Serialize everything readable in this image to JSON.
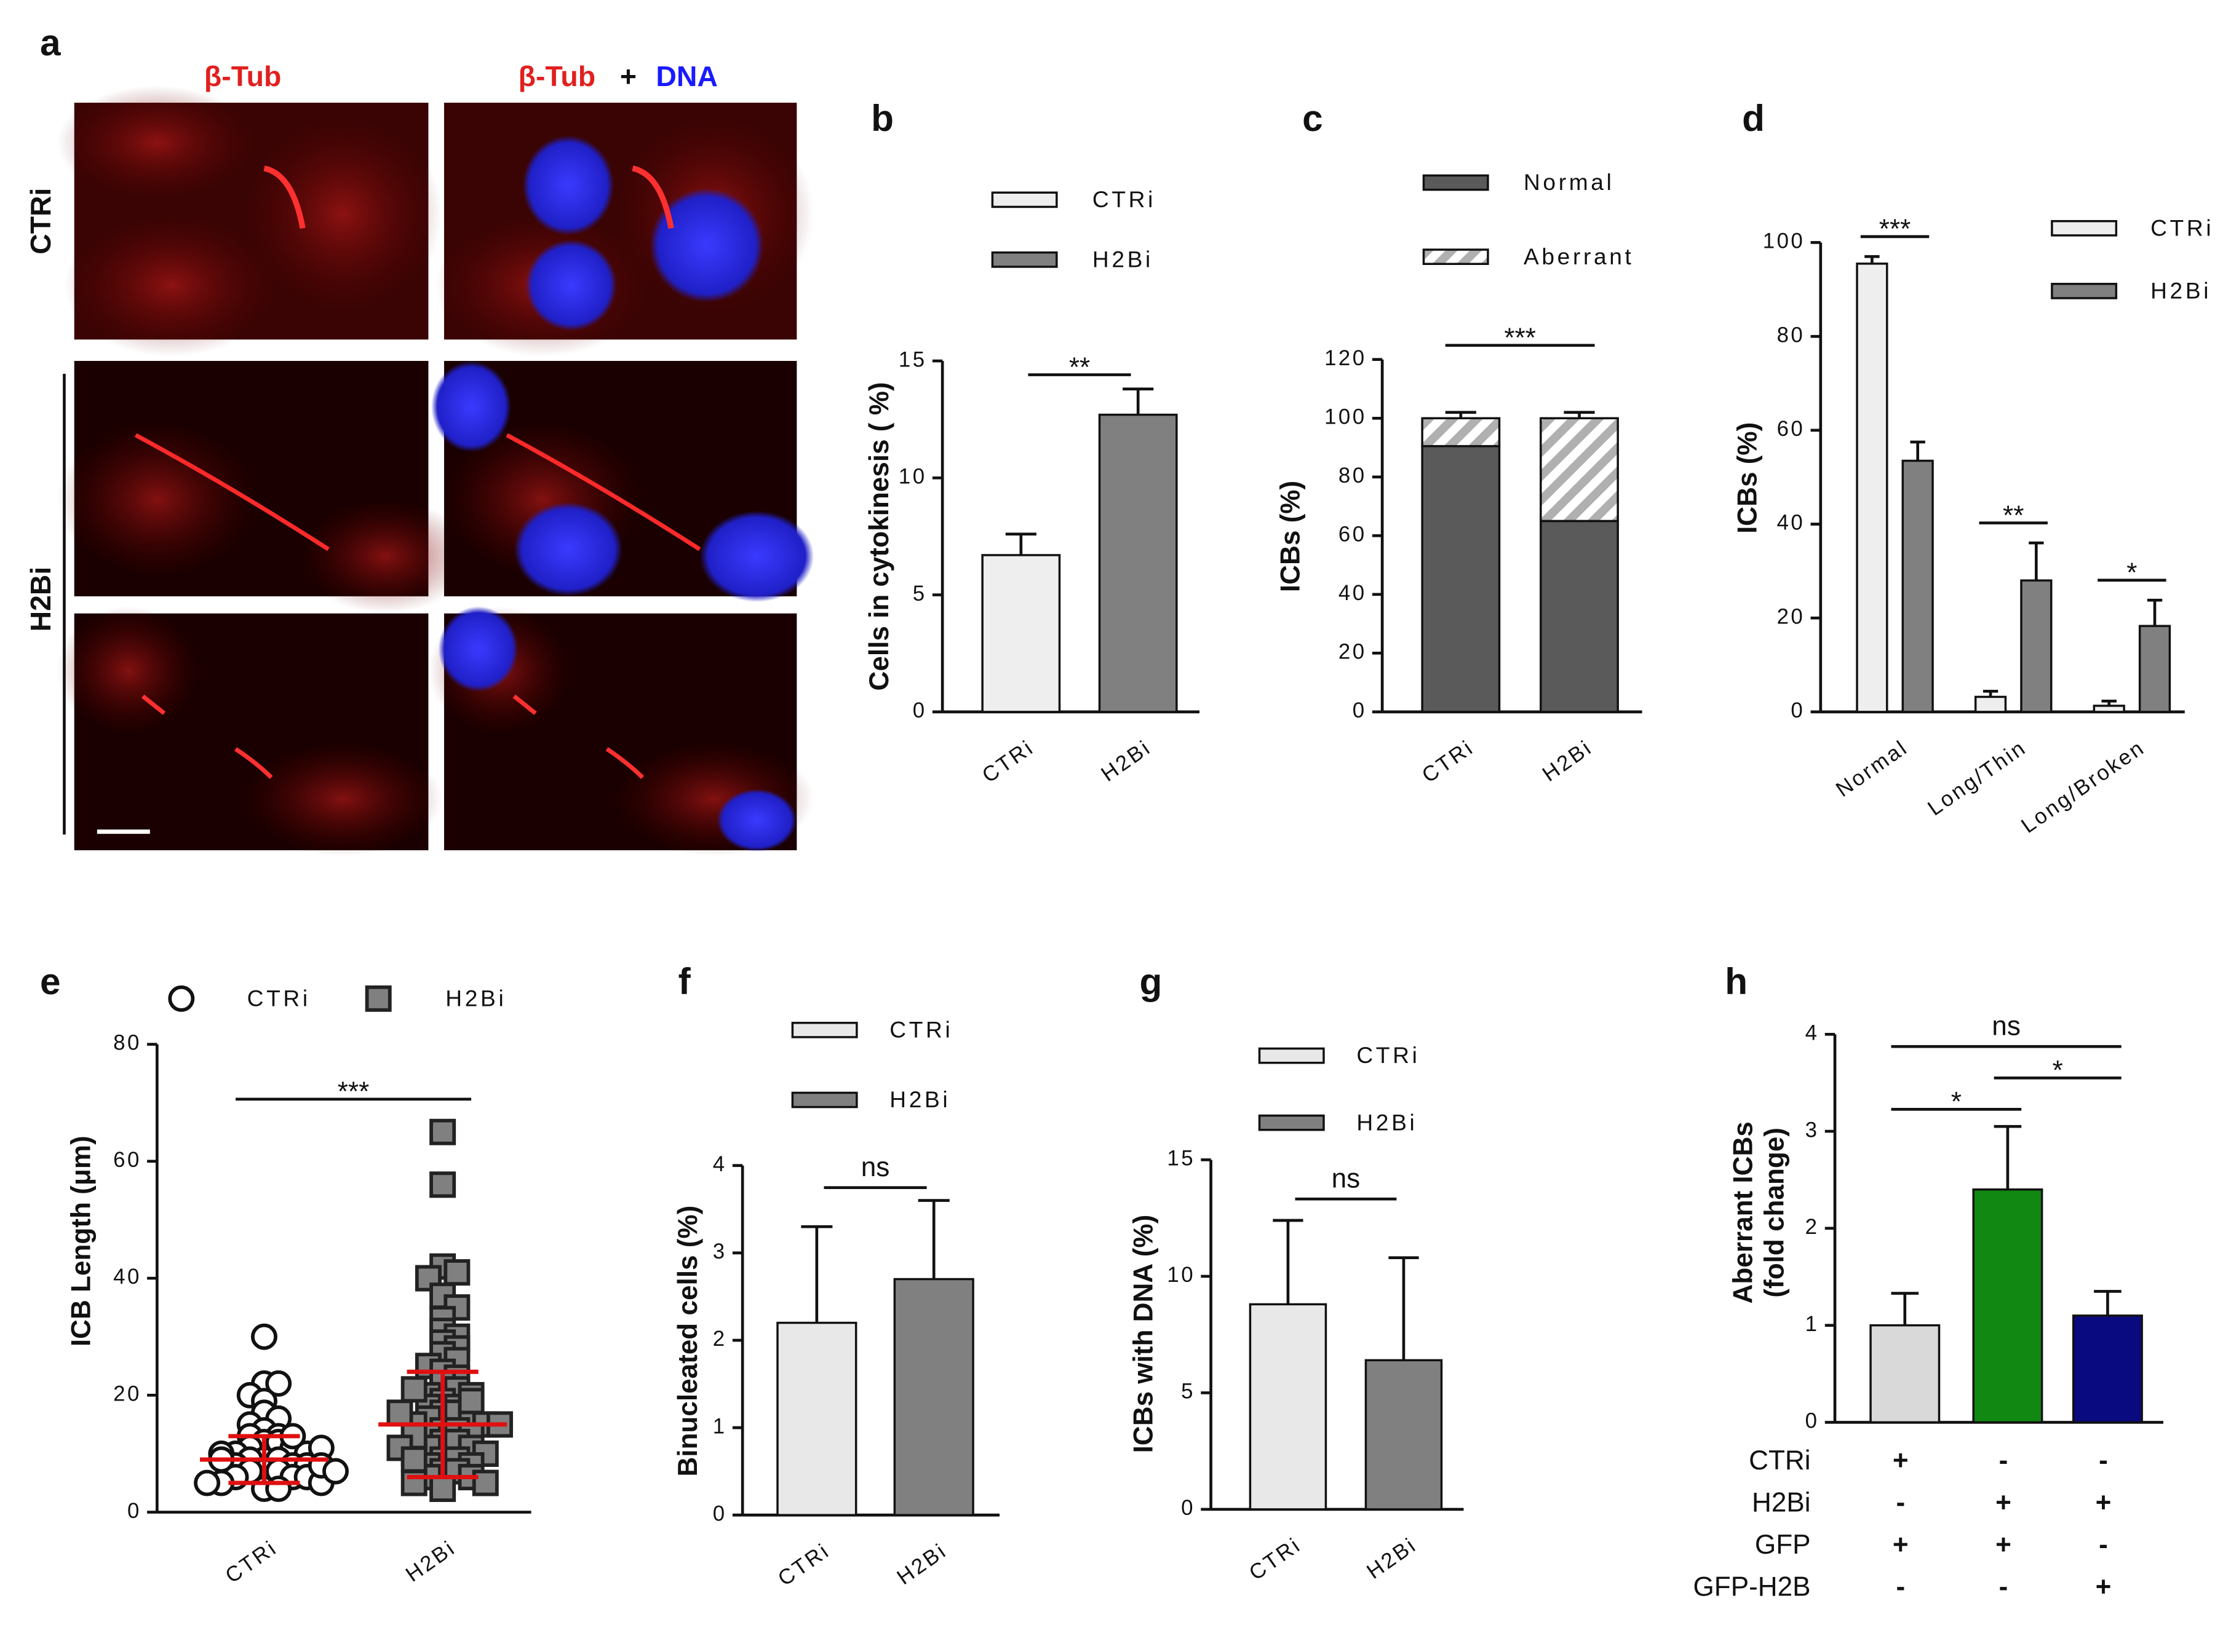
{
  "panel_a": {
    "label": "a",
    "channel_left": "β-Tub",
    "channel_right": [
      "β-Tub",
      "+",
      "DNA"
    ],
    "rows": [
      "CTRi",
      "H2Bi"
    ]
  },
  "chart_data": [
    {
      "type": "bar",
      "label": "b",
      "ylabel": "Cells in cytokinesis ( %)",
      "categories": [
        "CTRi",
        "H2Bi"
      ],
      "values": [
        6.7,
        12.7
      ],
      "errors": [
        0.9,
        1.1
      ],
      "colors": [
        "#eeeeee",
        "#808080"
      ],
      "ylim": [
        0,
        15
      ],
      "yticks": [
        0,
        5,
        10,
        15
      ],
      "legend": true,
      "annotations": [
        {
          "text": "**",
          "from": 0,
          "to": 1
        }
      ]
    },
    {
      "type": "stacked_bar",
      "label": "c",
      "ylabel": "ICBs (%)",
      "categories": [
        "CTRi",
        "H2Bi"
      ],
      "series": [
        {
          "name": "Normal",
          "color": "#5a5a5a",
          "values": [
            90.5,
            65
          ],
          "errors": [
            1.5,
            1.5
          ]
        },
        {
          "name": "Aberrant",
          "color": "#b0b0b0",
          "pattern": "hatch",
          "values": [
            9.5,
            35
          ],
          "errors": [
            2,
            2
          ]
        }
      ],
      "ylim": [
        0,
        120
      ],
      "yticks": [
        0,
        20,
        40,
        60,
        80,
        100,
        120
      ],
      "legend": true,
      "annotations": [
        {
          "text": "***",
          "from": 0,
          "to": 1
        }
      ]
    },
    {
      "type": "grouped_bar",
      "label": "d",
      "ylabel": "ICBs (%)",
      "categories": [
        "Normal",
        "Long/Thin",
        "Long/Broken"
      ],
      "series": [
        {
          "name": "CTRi",
          "color": "#eeeeee",
          "values": [
            95.5,
            3.2,
            1.3
          ],
          "errors": [
            1.5,
            1.2,
            1
          ]
        },
        {
          "name": "H2Bi",
          "color": "#808080",
          "values": [
            53.5,
            28,
            18.3
          ],
          "errors": [
            4,
            8,
            5.5
          ]
        }
      ],
      "ylim": [
        0,
        100
      ],
      "yticks": [
        0,
        20,
        40,
        60,
        80,
        100
      ],
      "legend": true,
      "annotations": [
        {
          "text": "***",
          "category": 0
        },
        {
          "text": "**",
          "category": 1
        },
        {
          "text": "*",
          "category": 2
        }
      ]
    },
    {
      "type": "scatter",
      "label": "e",
      "ylabel": "ICB Length (μm)",
      "series": [
        {
          "name": "CTRi",
          "marker": "circle",
          "color": "#ffffff",
          "values": [
            30,
            22,
            22,
            20,
            19,
            17,
            16,
            15,
            14,
            13,
            13,
            12,
            12,
            11,
            11,
            10,
            10,
            10,
            9,
            9,
            9,
            8,
            8,
            8,
            7,
            7,
            7,
            6,
            6,
            6,
            5,
            5,
            5,
            4,
            4,
            13,
            11,
            9,
            8,
            7
          ],
          "mean": 9,
          "sd": 4
        },
        {
          "name": "H2Bi",
          "marker": "square",
          "color": "#808080",
          "values": [
            65,
            56,
            42,
            41,
            40,
            37,
            35,
            33,
            31,
            30,
            29,
            28,
            27,
            26,
            25,
            24,
            23,
            22,
            21,
            20,
            20,
            19,
            18,
            18,
            17,
            17,
            16,
            16,
            15,
            15,
            14,
            14,
            13,
            13,
            12,
            12,
            11,
            11,
            10,
            10,
            9,
            9,
            8,
            8,
            7,
            7,
            6,
            6,
            5,
            5,
            4,
            21,
            19,
            17,
            15,
            13,
            11,
            9
          ],
          "mean": 15,
          "sd": 9
        }
      ],
      "ylim": [
        0,
        80
      ],
      "yticks": [
        0,
        20,
        40,
        60,
        80
      ],
      "legend": true,
      "annotations": [
        {
          "text": "***",
          "from": 0,
          "to": 1
        }
      ]
    },
    {
      "type": "bar",
      "label": "f",
      "ylabel": "Binucleated cells (%)",
      "categories": [
        "CTRi",
        "H2Bi"
      ],
      "values": [
        2.2,
        2.7
      ],
      "errors": [
        1.1,
        0.9
      ],
      "colors": [
        "#e8e8e8",
        "#808080"
      ],
      "ylim": [
        0,
        4
      ],
      "yticks": [
        0,
        1,
        2,
        3,
        4
      ],
      "legend": true,
      "annotations": [
        {
          "text": "ns",
          "from": 0,
          "to": 1
        }
      ]
    },
    {
      "type": "bar",
      "label": "g",
      "ylabel": "ICBs with DNA (%)",
      "categories": [
        "CTRi",
        "H2Bi"
      ],
      "values": [
        8.8,
        6.4
      ],
      "errors": [
        3.6,
        4.4
      ],
      "colors": [
        "#e8e8e8",
        "#808080"
      ],
      "ylim": [
        0,
        15
      ],
      "yticks": [
        0,
        5,
        10,
        15
      ],
      "legend": true,
      "annotations": [
        {
          "text": "ns",
          "from": 0,
          "to": 1
        }
      ]
    },
    {
      "type": "bar",
      "label": "h",
      "ylabel": [
        "Aberrant ICBs",
        "(fold change)"
      ],
      "values": [
        1.0,
        2.4,
        1.1
      ],
      "errors": [
        0.33,
        0.65,
        0.25
      ],
      "colors": [
        "#d9d9d9",
        "#118811",
        "#0a0a80"
      ],
      "ylim": [
        0,
        4
      ],
      "yticks": [
        0,
        1,
        2,
        3,
        4
      ],
      "legend": false,
      "annotations": [
        {
          "text": "*",
          "from": 0,
          "to": 1
        },
        {
          "text": "*",
          "from": 1,
          "to": 2
        },
        {
          "text": "ns",
          "from": 0,
          "to": 2
        }
      ],
      "conditions": [
        {
          "name": "CTRi",
          "signs": [
            "+",
            "-",
            "-"
          ]
        },
        {
          "name": "H2Bi",
          "signs": [
            "-",
            "+",
            "+"
          ]
        },
        {
          "name": "GFP",
          "signs": [
            "+",
            "+",
            "-"
          ]
        },
        {
          "name": "GFP-H2B",
          "signs": [
            "-",
            "-",
            "+"
          ]
        }
      ]
    }
  ]
}
